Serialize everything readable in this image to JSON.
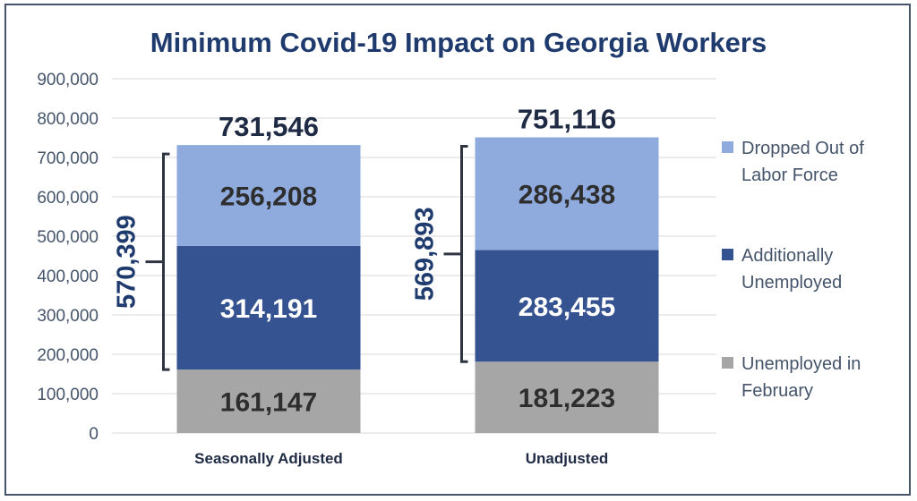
{
  "chart_data": {
    "type": "bar",
    "stacked": true,
    "title": "Minimum Covid-19 Impact on Georgia Workers",
    "categories": [
      "Seasonally Adjusted",
      "Unadjusted"
    ],
    "series": [
      {
        "name": "Unemployed in February",
        "legend_lines": [
          "Unemployed in",
          "February"
        ],
        "values": [
          161147,
          181223
        ],
        "value_labels": [
          "161,147",
          "181,223"
        ],
        "color": "#a6a6a6",
        "label_color": "#2e2e2e"
      },
      {
        "name": "Additionally Unemployed",
        "legend_lines": [
          "Additionally",
          "Unemployed"
        ],
        "values": [
          314191,
          283455
        ],
        "value_labels": [
          "314,191",
          "283,455"
        ],
        "color": "#355391",
        "label_color": "#ffffff"
      },
      {
        "name": "Dropped Out of Labor Force",
        "legend_lines": [
          "Dropped Out of",
          "Labor Force"
        ],
        "values": [
          256208,
          286438
        ],
        "value_labels": [
          "256,208",
          "286,438"
        ],
        "color": "#8faadc",
        "label_color": "#2e2e2e"
      }
    ],
    "totals": [
      731546,
      751116
    ],
    "total_labels": [
      "731,546",
      "751,116"
    ],
    "braces": [
      {
        "category": "Seasonally Adjusted",
        "value": 570399,
        "label": "570,399",
        "from": 161147,
        "to": 731546
      },
      {
        "category": "Unadjusted",
        "value": 569893,
        "label": "569,893",
        "from": 181223,
        "to": 751116
      }
    ],
    "ylim": [
      0,
      900000
    ],
    "yticks": [
      0,
      100000,
      200000,
      300000,
      400000,
      500000,
      600000,
      700000,
      800000,
      900000
    ],
    "ytick_labels": [
      "0",
      "100,000",
      "200,000",
      "300,000",
      "400,000",
      "500,000",
      "600,000",
      "700,000",
      "800,000",
      "900,000"
    ],
    "grid": true,
    "legend_position": "right",
    "xlabel": "",
    "ylabel": ""
  },
  "colors": {
    "title": "#1f3b6e",
    "axis_text": "#44546a",
    "grid": "#d9d9d9",
    "frame": "#44546a",
    "brace": "#2e3440"
  }
}
